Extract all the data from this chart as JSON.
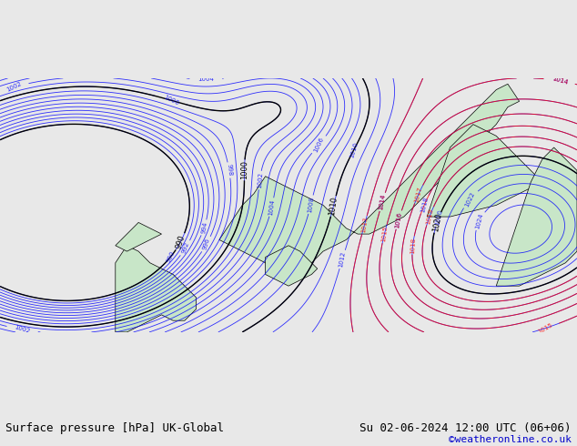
{
  "title_left": "Surface pressure [hPa] UK-Global",
  "title_right": "Su 02-06-2024 12:00 UTC (06+06)",
  "copyright": "©weatheronline.co.uk",
  "bg_color": "#e8e8e8",
  "map_sea_color": "#e8e8e8",
  "map_land_color": "#c8e6c8",
  "border_color": "#000000",
  "bottom_bar_color": "#ffffff",
  "bottom_bar_height": 0.08,
  "title_fontsize": 9,
  "copyright_fontsize": 8,
  "copyright_color": "#0000cc",
  "figsize": [
    6.34,
    4.9
  ],
  "dpi": 100
}
